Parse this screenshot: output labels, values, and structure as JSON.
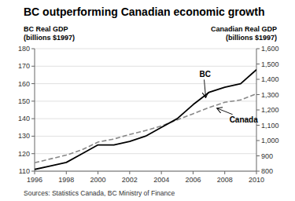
{
  "chart_data": {
    "type": "line",
    "title": "BC outperforming Canadian economic growth",
    "ylabel": [
      "BC Real GDP",
      "(billions $1997)"
    ],
    "y2label": [
      "Canadian Real GDP",
      "(billions $1997)"
    ],
    "source": "Sources:  Statistics Canada, BC Ministry of Finance",
    "x": [
      1996,
      1997,
      1998,
      1999,
      2000,
      2001,
      2002,
      2003,
      2004,
      2005,
      2006,
      2007,
      2008,
      2009,
      2010
    ],
    "series": [
      {
        "name": "BC",
        "color": "#000000",
        "line_style": "solid",
        "axis": "y",
        "values": [
          111,
          113,
          115,
          120,
          125,
          125,
          127,
          130,
          135,
          140,
          148,
          155,
          158,
          160,
          168
        ]
      },
      {
        "name": "Canada",
        "color": "#888888",
        "line_style": "dashed",
        "axis": "y2",
        "values": [
          855,
          880,
          905,
          940,
          990,
          1010,
          1040,
          1065,
          1095,
          1135,
          1175,
          1215,
          1250,
          1265,
          1305
        ]
      }
    ],
    "xlim": [
      1996,
      2010
    ],
    "xticks": [
      1996,
      1998,
      2000,
      2002,
      2004,
      2006,
      2008,
      2010
    ],
    "ylim": [
      110,
      180
    ],
    "yticks": [
      110,
      120,
      130,
      140,
      150,
      160,
      170,
      180
    ],
    "y2lim": [
      800,
      1600
    ],
    "y2ticks": [
      800,
      900,
      {
        "value": 1000,
        "label": "1,000"
      },
      {
        "value": 1100,
        "label": "1,100"
      },
      {
        "value": 1200,
        "label": "1,200"
      },
      {
        "value": 1300,
        "label": "1,300"
      },
      {
        "value": 1400,
        "label": "1,400"
      },
      {
        "value": 1500,
        "label": "1,500"
      },
      {
        "value": 1600,
        "label": "1,600"
      }
    ],
    "grid": true,
    "annotations": [
      {
        "text": "BC",
        "x": 2006.8,
        "y": 152
      },
      {
        "text": "Canada",
        "x": 2007.5,
        "y": 146
      }
    ]
  }
}
